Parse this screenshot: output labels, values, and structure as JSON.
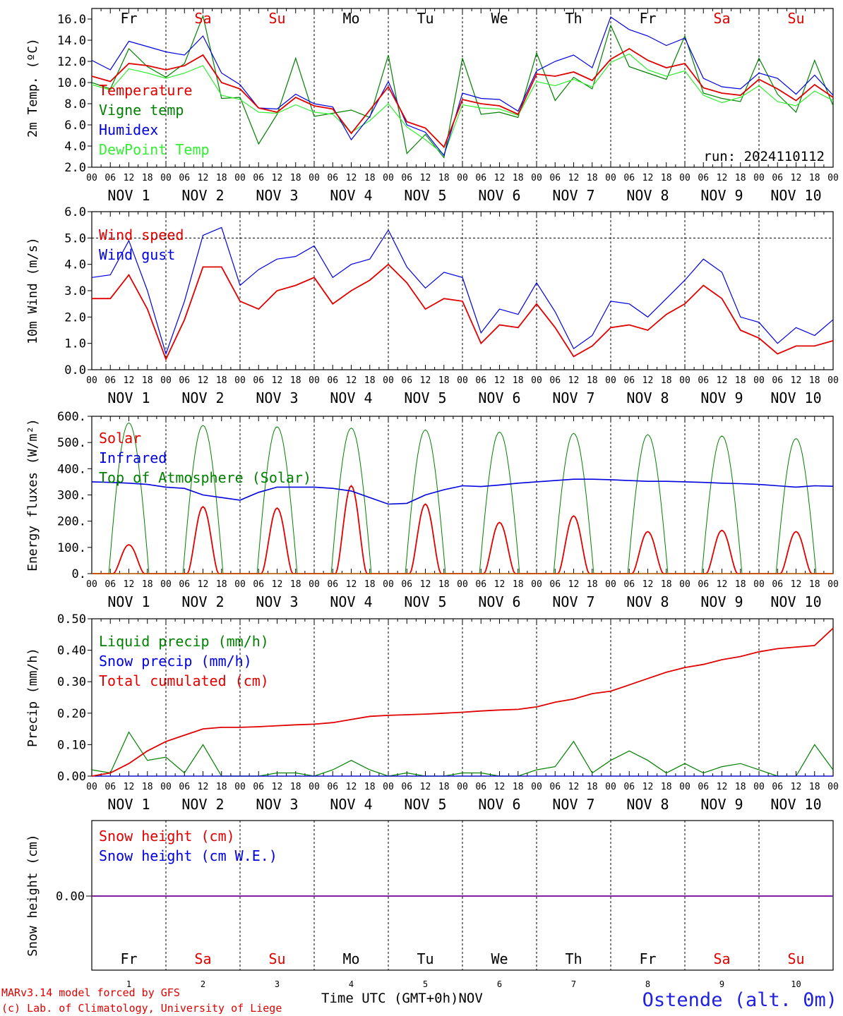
{
  "chart_data": [
    {
      "type": "line",
      "ylabel": "2m Temp. (ºC)",
      "ylim": [
        2,
        17
      ],
      "yticks": [
        "2.0",
        "4.0",
        "6.0",
        "8.0",
        "10.0",
        "12.0",
        "14.0",
        "16.0"
      ],
      "run_label": "run: 2024110112",
      "x_hours": [
        0,
        6,
        12,
        18,
        24,
        30,
        36,
        42,
        48,
        54,
        60,
        66,
        72,
        78,
        84,
        90,
        96,
        102,
        108,
        114,
        120,
        126,
        132,
        138,
        144,
        150,
        156,
        162,
        168,
        174,
        180,
        186,
        192,
        198,
        204,
        210,
        216,
        222,
        228,
        234,
        240
      ],
      "series": [
        {
          "name": "Temperature",
          "color": "#e00000",
          "values": [
            10.6,
            10.1,
            11.8,
            11.6,
            11.2,
            11.6,
            12.6,
            10.0,
            9.4,
            7.6,
            7.2,
            8.6,
            7.8,
            7.5,
            5.2,
            7.4,
            9.6,
            6.3,
            5.7,
            3.9,
            8.4,
            8.0,
            7.8,
            7.0,
            10.8,
            10.6,
            11.0,
            10.2,
            12.2,
            13.2,
            12.1,
            11.4,
            11.8,
            9.5,
            9.0,
            8.8,
            10.3,
            9.4,
            8.3,
            9.8,
            8.6
          ]
        },
        {
          "name": "Vigne temp",
          "color": "#008000",
          "values": [
            10.0,
            9.4,
            13.2,
            11.5,
            10.5,
            11.8,
            16.3,
            8.5,
            8.6,
            4.2,
            7.0,
            12.3,
            6.8,
            7.1,
            7.4,
            6.7,
            12.6,
            3.3,
            5.1,
            2.9,
            12.3,
            7.0,
            7.2,
            6.7,
            12.8,
            8.3,
            10.5,
            9.4,
            15.4,
            11.5,
            10.9,
            10.3,
            14.4,
            9.0,
            8.5,
            8.2,
            12.3,
            8.9,
            7.2,
            12.1,
            7.8
          ]
        },
        {
          "name": "Humidex",
          "color": "#0000e0",
          "values": [
            12.1,
            11.2,
            13.9,
            13.4,
            12.9,
            12.6,
            14.4,
            10.9,
            9.8,
            7.6,
            7.5,
            8.9,
            8.0,
            7.7,
            4.6,
            6.8,
            10.1,
            6.0,
            5.3,
            3.1,
            9.0,
            8.5,
            8.4,
            7.3,
            11.1,
            12.0,
            12.6,
            11.4,
            16.2,
            15.0,
            14.4,
            13.5,
            14.2,
            10.4,
            9.6,
            9.4,
            10.9,
            10.4,
            8.9,
            10.7,
            8.8
          ]
        },
        {
          "name": "DewPoint Temp",
          "color": "#33ee33",
          "values": [
            9.8,
            9.3,
            11.3,
            10.9,
            10.4,
            10.9,
            11.6,
            8.8,
            8.4,
            7.2,
            7.1,
            7.9,
            7.2,
            7.0,
            5.3,
            6.4,
            8.0,
            5.8,
            4.6,
            3.2,
            7.9,
            7.6,
            7.5,
            6.9,
            10.1,
            9.7,
            10.3,
            9.6,
            11.9,
            12.7,
            11.2,
            10.6,
            11.1,
            8.8,
            8.1,
            8.6,
            9.7,
            8.2,
            7.8,
            9.2,
            8.3
          ]
        }
      ]
    },
    {
      "type": "line",
      "ylabel": "10m Wind (m/s)",
      "ylim": [
        0,
        6
      ],
      "yticks": [
        "0.0",
        "1.0",
        "2.0",
        "3.0",
        "4.0",
        "5.0",
        "6.0"
      ],
      "ref_line": 5.0,
      "x_hours": [
        0,
        6,
        12,
        18,
        24,
        30,
        36,
        42,
        48,
        54,
        60,
        66,
        72,
        78,
        84,
        90,
        96,
        102,
        108,
        114,
        120,
        126,
        132,
        138,
        144,
        150,
        156,
        162,
        168,
        174,
        180,
        186,
        192,
        198,
        204,
        210,
        216,
        222,
        228,
        234,
        240
      ],
      "series": [
        {
          "name": "Wind speed",
          "color": "#e00000",
          "values": [
            2.7,
            2.7,
            3.6,
            2.3,
            0.4,
            1.9,
            3.9,
            3.9,
            2.6,
            2.3,
            3.0,
            3.2,
            3.5,
            2.5,
            3.0,
            3.4,
            4.0,
            3.3,
            2.3,
            2.7,
            2.6,
            1.0,
            1.7,
            1.6,
            2.5,
            1.6,
            0.5,
            0.9,
            1.6,
            1.7,
            1.5,
            2.1,
            2.5,
            3.2,
            2.7,
            1.5,
            1.2,
            0.6,
            0.9,
            0.9,
            1.1
          ]
        },
        {
          "name": "Wind gust",
          "color": "#0000e0",
          "values": [
            3.5,
            3.6,
            4.9,
            3.0,
            0.6,
            2.6,
            5.1,
            5.4,
            3.2,
            3.8,
            4.2,
            4.3,
            4.7,
            3.5,
            4.0,
            4.2,
            5.3,
            3.9,
            3.1,
            3.7,
            3.5,
            1.4,
            2.3,
            2.1,
            3.3,
            2.2,
            0.8,
            1.3,
            2.6,
            2.5,
            2.0,
            2.7,
            3.4,
            4.2,
            3.7,
            2.0,
            1.8,
            1.0,
            1.6,
            1.3,
            1.9
          ]
        }
      ]
    },
    {
      "type": "line",
      "ylabel": "Energy fluxes (W/m²)",
      "ylim": [
        0,
        600
      ],
      "yticks": [
        "0.",
        "100.",
        "200.",
        "300.",
        "400.",
        "500.",
        "600."
      ],
      "peaks": {
        "solar": [
          110,
          255,
          250,
          335,
          265,
          195,
          220,
          160,
          165,
          160
        ],
        "top_of_atmosphere": [
          575,
          565,
          560,
          555,
          548,
          540,
          535,
          530,
          525,
          515
        ],
        "infrared_hourly6": [
          350,
          348,
          345,
          340,
          330,
          325,
          300,
          290,
          280,
          310,
          330,
          330,
          330,
          325,
          315,
          290,
          265,
          268,
          300,
          320,
          335,
          332,
          338,
          345,
          350,
          355,
          360,
          360,
          358,
          355,
          352,
          352,
          350,
          348,
          345,
          343,
          340,
          335,
          330,
          335,
          333
        ]
      },
      "series": [
        {
          "name": "Solar",
          "color": "#e00000"
        },
        {
          "name": "Infrared",
          "color": "#0000e0"
        },
        {
          "name": "Top of Atmosphere (Solar)",
          "color": "#008000"
        }
      ]
    },
    {
      "type": "line",
      "ylabel": "Precip (mm/h)",
      "ylim": [
        0,
        0.5
      ],
      "yticks": [
        "0.00",
        "0.10",
        "0.20",
        "0.30",
        "0.40",
        "0.50"
      ],
      "x_hours": [
        0,
        6,
        12,
        18,
        24,
        30,
        36,
        42,
        48,
        54,
        60,
        66,
        72,
        78,
        84,
        90,
        96,
        102,
        108,
        114,
        120,
        126,
        132,
        138,
        144,
        150,
        156,
        162,
        168,
        174,
        180,
        186,
        192,
        198,
        204,
        210,
        216,
        222,
        228,
        234,
        240
      ],
      "series": [
        {
          "name": "Liquid precip (mm/h)",
          "color": "#008000",
          "values": [
            0.02,
            0.01,
            0.14,
            0.05,
            0.06,
            0.01,
            0.1,
            0.0,
            0.0,
            0.0,
            0.01,
            0.01,
            0.0,
            0.02,
            0.05,
            0.02,
            0.0,
            0.01,
            0.0,
            0.0,
            0.01,
            0.01,
            0.0,
            0.0,
            0.02,
            0.03,
            0.11,
            0.01,
            0.05,
            0.08,
            0.05,
            0.01,
            0.04,
            0.01,
            0.03,
            0.04,
            0.02,
            0.0,
            0.0,
            0.1,
            0.02
          ]
        },
        {
          "name": "Snow precip (mm/h)",
          "color": "#0000e0",
          "values": [
            0,
            0,
            0,
            0,
            0,
            0,
            0,
            0,
            0,
            0,
            0,
            0,
            0,
            0,
            0,
            0,
            0,
            0,
            0,
            0,
            0,
            0,
            0,
            0,
            0,
            0,
            0,
            0,
            0,
            0,
            0,
            0,
            0,
            0,
            0,
            0,
            0,
            0,
            0,
            0,
            0
          ]
        },
        {
          "name": "Total cumulated (cm)",
          "color": "#e00000",
          "values": [
            0.0,
            0.01,
            0.04,
            0.08,
            0.11,
            0.13,
            0.15,
            0.155,
            0.155,
            0.157,
            0.16,
            0.163,
            0.165,
            0.17,
            0.18,
            0.19,
            0.193,
            0.195,
            0.197,
            0.2,
            0.203,
            0.207,
            0.21,
            0.212,
            0.22,
            0.235,
            0.245,
            0.262,
            0.27,
            0.29,
            0.31,
            0.33,
            0.345,
            0.355,
            0.37,
            0.38,
            0.395,
            0.405,
            0.41,
            0.415,
            0.47
          ]
        }
      ]
    },
    {
      "type": "line",
      "ylabel": "Snow height (cm)",
      "yticks": [
        "0.00"
      ],
      "series": [
        {
          "name": "Snow height (cm)",
          "color": "#e00000",
          "values": [
            0,
            0
          ]
        },
        {
          "name": "Snow height (cm W.E.)",
          "color": "#0000e0",
          "values": [
            0,
            0
          ]
        }
      ]
    }
  ],
  "days": {
    "weekday": [
      "Fr",
      "Sa",
      "Su",
      "Mo",
      "Tu",
      "We",
      "Th",
      "Fr",
      "Sa",
      "Su"
    ],
    "weekday_colors": [
      "#000000",
      "#e00000",
      "#e00000",
      "#000000",
      "#000000",
      "#000000",
      "#000000",
      "#000000",
      "#e00000",
      "#e00000"
    ],
    "date_labels": [
      "NOV  1",
      "NOV  2",
      "NOV  3",
      "NOV  4",
      "NOV  5",
      "NOV  6",
      "NOV  7",
      "NOV  8",
      "NOV  9",
      "NOV 10"
    ],
    "day_numbers": [
      "1",
      "2",
      "3",
      "4",
      "5",
      "6",
      "7",
      "8",
      "9",
      "10"
    ],
    "hour_ticks": [
      "00",
      "06",
      "12",
      "18"
    ],
    "end_hour_tick": "00"
  },
  "footer": {
    "model_line": "MARv3.14 model forced by GFS",
    "credit_line": "(c) Lab. of Climatology, University of Liege",
    "axis_title": "Time UTC (GMT+0h)",
    "month": "NOV",
    "station": "Ostende (alt. 0m)"
  }
}
